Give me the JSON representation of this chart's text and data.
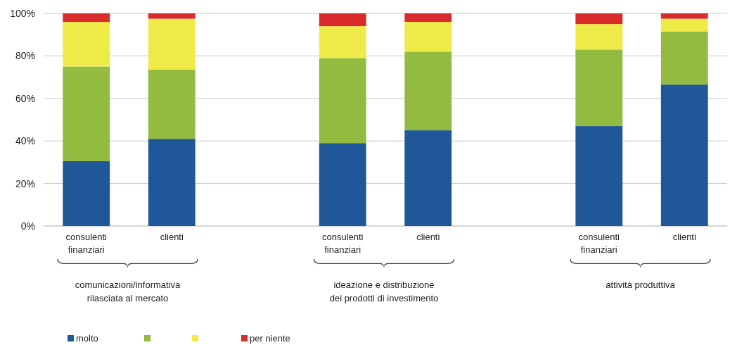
{
  "chart_data": {
    "type": "bar",
    "stacked": true,
    "categories": [
      "consulenti finanziari",
      "clienti",
      null,
      "consulenti finanziari",
      "clienti",
      null,
      "consulenti finanziari",
      "clienti"
    ],
    "series": [
      {
        "name": "molto",
        "color": "#1f5799",
        "values": [
          30.5,
          41,
          null,
          39,
          45,
          null,
          47,
          66.5
        ]
      },
      {
        "color": "#93bb3f",
        "values": [
          44.5,
          32.5,
          null,
          40,
          37,
          null,
          36,
          25
        ]
      },
      {
        "color": "#eeea48",
        "values": [
          21,
          24,
          null,
          15,
          14,
          null,
          12,
          6
        ]
      },
      {
        "name": "per niente",
        "color": "#d92b2b",
        "values": [
          4,
          2.5,
          null,
          6,
          4,
          null,
          5,
          2.5
        ]
      }
    ],
    "ylim": [
      0,
      100
    ],
    "yticks": [
      {
        "value": 0,
        "label": "0%"
      },
      {
        "value": 20,
        "label": "20%"
      },
      {
        "value": 40,
        "label": "40%"
      },
      {
        "value": 60,
        "label": "60%"
      },
      {
        "value": 80,
        "label": "80%"
      },
      {
        "value": 100,
        "label": "100%"
      }
    ],
    "grid": "y",
    "legend": "bottom left",
    "annotations": [
      "comunicazioni/informativa rilasciata al mercato",
      "ideazione e distribuzione dei prodotti di investimento",
      "attività produttiva"
    ]
  }
}
